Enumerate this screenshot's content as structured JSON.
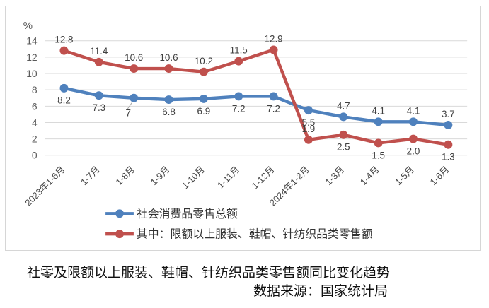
{
  "chart_data": {
    "type": "line",
    "unit_label": "%",
    "categories": [
      "2023年1-6月",
      "1-7月",
      "1-8月",
      "1-9月",
      "1-10月",
      "1-11月",
      "1-12月",
      "2024年1-2月",
      "1-3月",
      "1-4月",
      "1-5月",
      "1-6月"
    ],
    "series": [
      {
        "name": "社会消费品零售总额",
        "color": "#4f81bd",
        "values": [
          8.2,
          7.3,
          7,
          6.8,
          6.9,
          7.2,
          7.2,
          5.5,
          4.7,
          4.1,
          4.1,
          3.7
        ],
        "labels": [
          "8.2",
          "7.3",
          "7",
          "6.8",
          "6.9",
          "7.2",
          "7.2",
          "5.5",
          "4.7",
          "4.1",
          "4.1",
          "3.7"
        ],
        "label_pos": [
          "below",
          "below",
          "below-leader",
          "below",
          "below",
          "below",
          "below",
          "below",
          "above",
          "above",
          "above",
          "above"
        ]
      },
      {
        "name": "其中：限额以上服装、鞋帽、针纺织品类零售额",
        "color": "#c0504d",
        "values": [
          12.8,
          11.4,
          10.6,
          10.6,
          10.2,
          11.5,
          12.9,
          1.9,
          2.5,
          1.5,
          2.0,
          1.3
        ],
        "labels": [
          "12.8",
          "11.4",
          "10.6",
          "10.6",
          "10.2",
          "11.5",
          "12.9",
          "1.9",
          "2.5",
          "1.5",
          "2.0",
          "1.3"
        ],
        "label_pos": [
          "above",
          "above",
          "above",
          "above",
          "above",
          "above",
          "above",
          "above",
          "below",
          "below",
          "below",
          "below"
        ]
      }
    ],
    "y_ticks": [
      0,
      2,
      4,
      6,
      8,
      10,
      12,
      14
    ],
    "ylim": [
      0,
      14
    ],
    "grid": true,
    "legend_position": "bottom"
  },
  "footer": {
    "title": "社零及限额以上服装、鞋帽、针纺织品类零售额同比变化趋势",
    "source": "数据来源：国家统计局"
  },
  "colors": {
    "series_blue": "#4f81bd",
    "series_red": "#c0504d",
    "gridline": "#d9d9d9",
    "axis_text": "#595959",
    "data_label_text": "#404040",
    "chart_border": "#d6d6d6",
    "legend_text": "#333333",
    "footer_text": "#111111"
  }
}
